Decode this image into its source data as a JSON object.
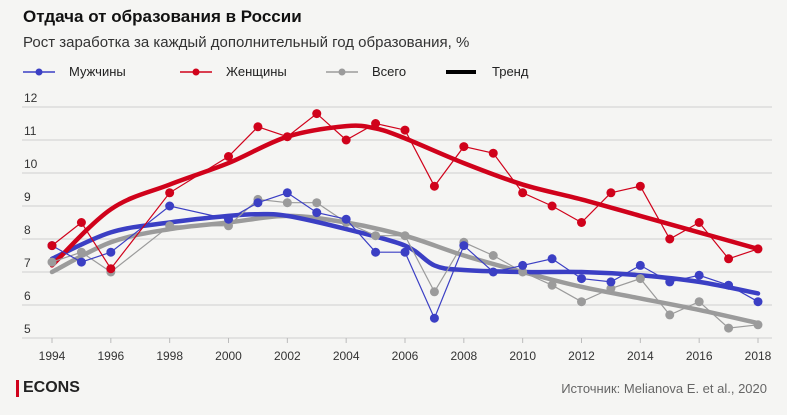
{
  "header": {
    "title": "Отдача от образования в России",
    "subtitle": "Рост заработка за каждый дополнительный год образования, %"
  },
  "legend": [
    {
      "label": "Мужчины",
      "color": "#3b3fc4",
      "icon": "line-dot"
    },
    {
      "label": "Женщины",
      "color": "#d0021b",
      "icon": "line-dot"
    },
    {
      "label": "Всего",
      "color": "#9b9b9b",
      "icon": "line-dot"
    },
    {
      "label": "Тренд",
      "color": "#000000",
      "icon": "thick-line"
    }
  ],
  "footer": {
    "logo": "ECONS",
    "source": "Источник: Melianova E. et al., 2020"
  },
  "chart_data": {
    "type": "line",
    "title": "Отдача от образования в России",
    "subtitle": "Рост заработка за каждый дополнительный год образования, %",
    "ylim": [
      5,
      12
    ],
    "yticks": [
      "5",
      "6",
      "7",
      "8",
      "9",
      "10",
      "11",
      "12"
    ],
    "xlim": [
      1994,
      2018
    ],
    "xticks": [
      "1994",
      "1996",
      "1998",
      "2000",
      "2002",
      "2004",
      "2006",
      "2008",
      "2010",
      "2012",
      "2014",
      "2016",
      "2018"
    ],
    "grid": true,
    "legend_position": "top",
    "series": [
      {
        "name": "Мужчины",
        "color": "#3b3fc4",
        "x": [
          1994,
          1995,
          1996,
          1998,
          2000,
          2001,
          2002,
          2003,
          2004,
          2005,
          2006,
          2007,
          2008,
          2009,
          2010,
          2011,
          2012,
          2013,
          2014,
          2015,
          2016,
          2017,
          2018
        ],
        "y": [
          7.8,
          7.3,
          7.6,
          9.0,
          8.6,
          9.1,
          9.4,
          8.8,
          8.6,
          7.6,
          7.6,
          5.6,
          7.8,
          7.0,
          7.2,
          7.4,
          6.8,
          6.7,
          7.2,
          6.7,
          6.9,
          6.6,
          6.1
        ],
        "trend": {
          "x": [
            1994,
            1996,
            1998,
            2000,
            2001,
            2002,
            2004,
            2006,
            2007,
            2008,
            2010,
            2012,
            2014,
            2016,
            2018
          ],
          "y": [
            7.4,
            8.2,
            8.5,
            8.7,
            8.75,
            8.7,
            8.3,
            7.8,
            7.2,
            7.06,
            7.0,
            7.0,
            6.9,
            6.7,
            6.35
          ]
        }
      },
      {
        "name": "Женщины",
        "color": "#d0021b",
        "x": [
          1994,
          1995,
          1996,
          1998,
          2000,
          2001,
          2002,
          2003,
          2004,
          2005,
          2006,
          2007,
          2008,
          2009,
          2010,
          2011,
          2012,
          2013,
          2014,
          2015,
          2016,
          2017,
          2018
        ],
        "y": [
          7.8,
          8.5,
          7.1,
          9.4,
          10.5,
          11.4,
          11.1,
          11.8,
          11.0,
          11.5,
          11.3,
          9.6,
          10.8,
          10.6,
          9.4,
          9.0,
          8.5,
          9.4,
          9.6,
          8.0,
          8.5,
          7.4,
          7.7
        ],
        "trend": {
          "x": [
            1994,
            1996,
            1998,
            2000,
            2002,
            2004,
            2005,
            2006,
            2008,
            2010,
            2012,
            2014,
            2016,
            2018
          ],
          "y": [
            7.2,
            8.9,
            9.65,
            10.3,
            11.1,
            11.42,
            11.35,
            11.05,
            10.3,
            9.65,
            9.2,
            8.7,
            8.2,
            7.7
          ]
        }
      },
      {
        "name": "Всего",
        "color": "#9b9b9b",
        "x": [
          1994,
          1995,
          1996,
          1998,
          2000,
          2001,
          2002,
          2003,
          2004,
          2005,
          2006,
          2007,
          2008,
          2009,
          2010,
          2011,
          2012,
          2013,
          2014,
          2015,
          2016,
          2017,
          2018
        ],
        "y": [
          7.3,
          7.6,
          7.0,
          8.4,
          8.4,
          9.2,
          9.1,
          9.1,
          8.5,
          8.1,
          8.1,
          6.4,
          7.9,
          7.5,
          7.0,
          6.6,
          6.1,
          6.5,
          6.8,
          5.7,
          6.1,
          5.3,
          5.4
        ],
        "trend": {
          "x": [
            1994,
            1996,
            1998,
            2000,
            2002,
            2004,
            2006,
            2008,
            2010,
            2012,
            2014,
            2016,
            2018
          ],
          "y": [
            7.0,
            7.9,
            8.3,
            8.5,
            8.7,
            8.5,
            8.1,
            7.5,
            7.0,
            6.55,
            6.2,
            5.85,
            5.45
          ]
        }
      }
    ]
  }
}
